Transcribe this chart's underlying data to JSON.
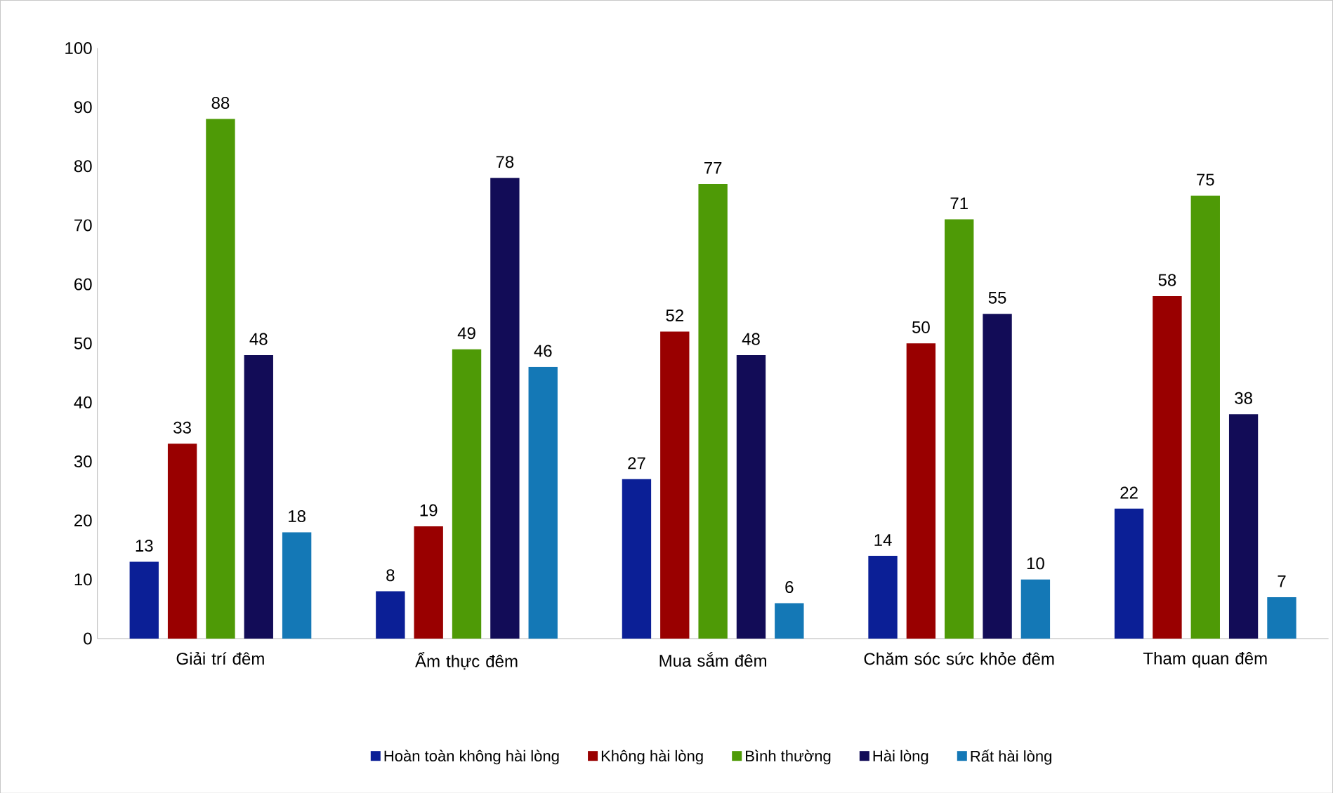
{
  "chart_data": {
    "type": "bar",
    "categories": [
      "Giải trí đêm",
      "Ẩm thực đêm",
      "Mua sắm đêm",
      "Chăm sóc sức khỏe đêm",
      "Tham quan đêm"
    ],
    "series": [
      {
        "name": "Hoàn toàn không hài lòng",
        "color": "#0b1f96",
        "values": [
          13,
          8,
          27,
          14,
          22
        ]
      },
      {
        "name": "Không hài lòng",
        "color": "#990000",
        "values": [
          33,
          19,
          52,
          50,
          58
        ]
      },
      {
        "name": "Bình thường",
        "color": "#4e9a06",
        "values": [
          88,
          49,
          77,
          71,
          75
        ]
      },
      {
        "name": "Hài lòng",
        "color": "#120c57",
        "values": [
          48,
          78,
          48,
          55,
          38
        ]
      },
      {
        "name": "Rất hài lòng",
        "color": "#1478b6",
        "values": [
          18,
          46,
          6,
          10,
          7
        ]
      }
    ],
    "ylim": [
      0,
      100
    ],
    "yticks": [
      0,
      10,
      20,
      30,
      40,
      50,
      60,
      70,
      80,
      90,
      100
    ],
    "data_labels": true,
    "legend": "bottom",
    "grid": false
  }
}
